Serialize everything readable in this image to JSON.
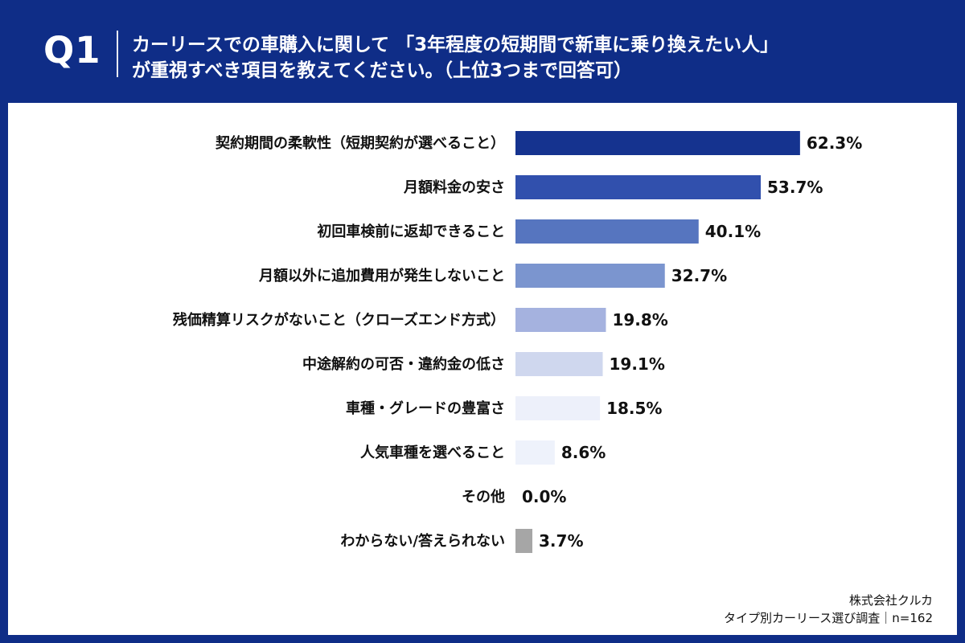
{
  "header": {
    "label": "Q1",
    "question_line1": "カーリースでの車購入に関して 「3年程度の短期間で新車に乗り換えたい人」",
    "question_line2": "が重視すべき項目を教えてください。（上位3つまで回答可）"
  },
  "footer": {
    "company": "株式会社クルカ",
    "survey": "タイプ別カーリース選び調査｜n=162"
  },
  "colors": {
    "header_bg": "#0f2d87",
    "panel_bg": "#ffffff",
    "text": "#111111",
    "value_text": "#111111",
    "bar_colors": [
      "#15338f",
      "#3150ad",
      "#5675bf",
      "#7b95cf",
      "#a5b2df",
      "#cfd7ee",
      "#edf0fa",
      "#eef2fb",
      "#ffffff",
      "#a6a6a6"
    ]
  },
  "chart_data": {
    "type": "bar",
    "orientation": "horizontal",
    "categories": [
      "契約期間の柔軟性（短期契約が選べること）",
      "月額料金の安さ",
      "初回車検前に返却できること",
      "月額以外に追加費用が発生しないこと",
      "残価精算リスクがないこと（クローズエンド方式）",
      "中途解約の可否・違約金の低さ",
      "車種・グレードの豊富さ",
      "人気車種を選べること",
      "その他",
      "わからない/答えられない"
    ],
    "values": [
      62.3,
      53.7,
      40.1,
      32.7,
      19.8,
      19.1,
      18.5,
      8.6,
      0.0,
      3.7
    ],
    "value_labels": [
      "62.3%",
      "53.7%",
      "40.1%",
      "32.7%",
      "19.8%",
      "19.1%",
      "18.5%",
      "8.6%",
      "0.0%",
      "3.7%"
    ],
    "xlim": [
      0,
      100
    ],
    "grid": false
  }
}
